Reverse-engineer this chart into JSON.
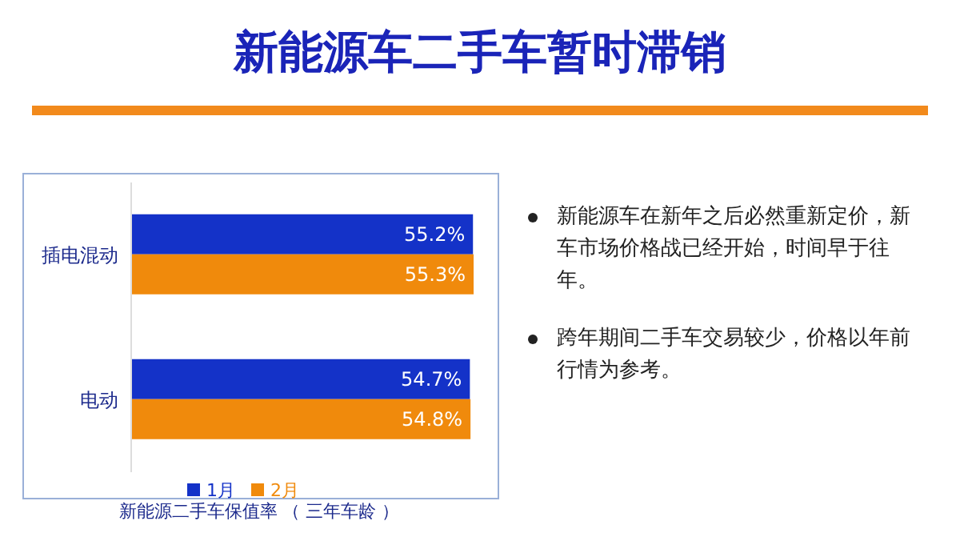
{
  "chart_data": {
    "type": "bar",
    "orientation": "horizontal",
    "title": "新能源车二手车暂时滞销",
    "categories": [
      "插电混动",
      "电动"
    ],
    "series": [
      {
        "name": "1月",
        "color": "#1432c8",
        "values": [
          55.2,
          54.7
        ],
        "value_labels": [
          "55.2%",
          "54.7%"
        ]
      },
      {
        "name": "2月",
        "color": "#f08a0c",
        "values": [
          55.3,
          54.8
        ],
        "value_labels": [
          "55.3%",
          "54.8%"
        ]
      }
    ],
    "legend": "bottom",
    "grid": false,
    "annotations": [
      "新能源二手车保值率 （ 三年车龄 ）",
      "新能源车在新年之后必然重新定价，新车市场价格战已经开始，时间早于往年。",
      "跨年期间二手车交易较少，价格以年前行情为参考。"
    ]
  }
}
